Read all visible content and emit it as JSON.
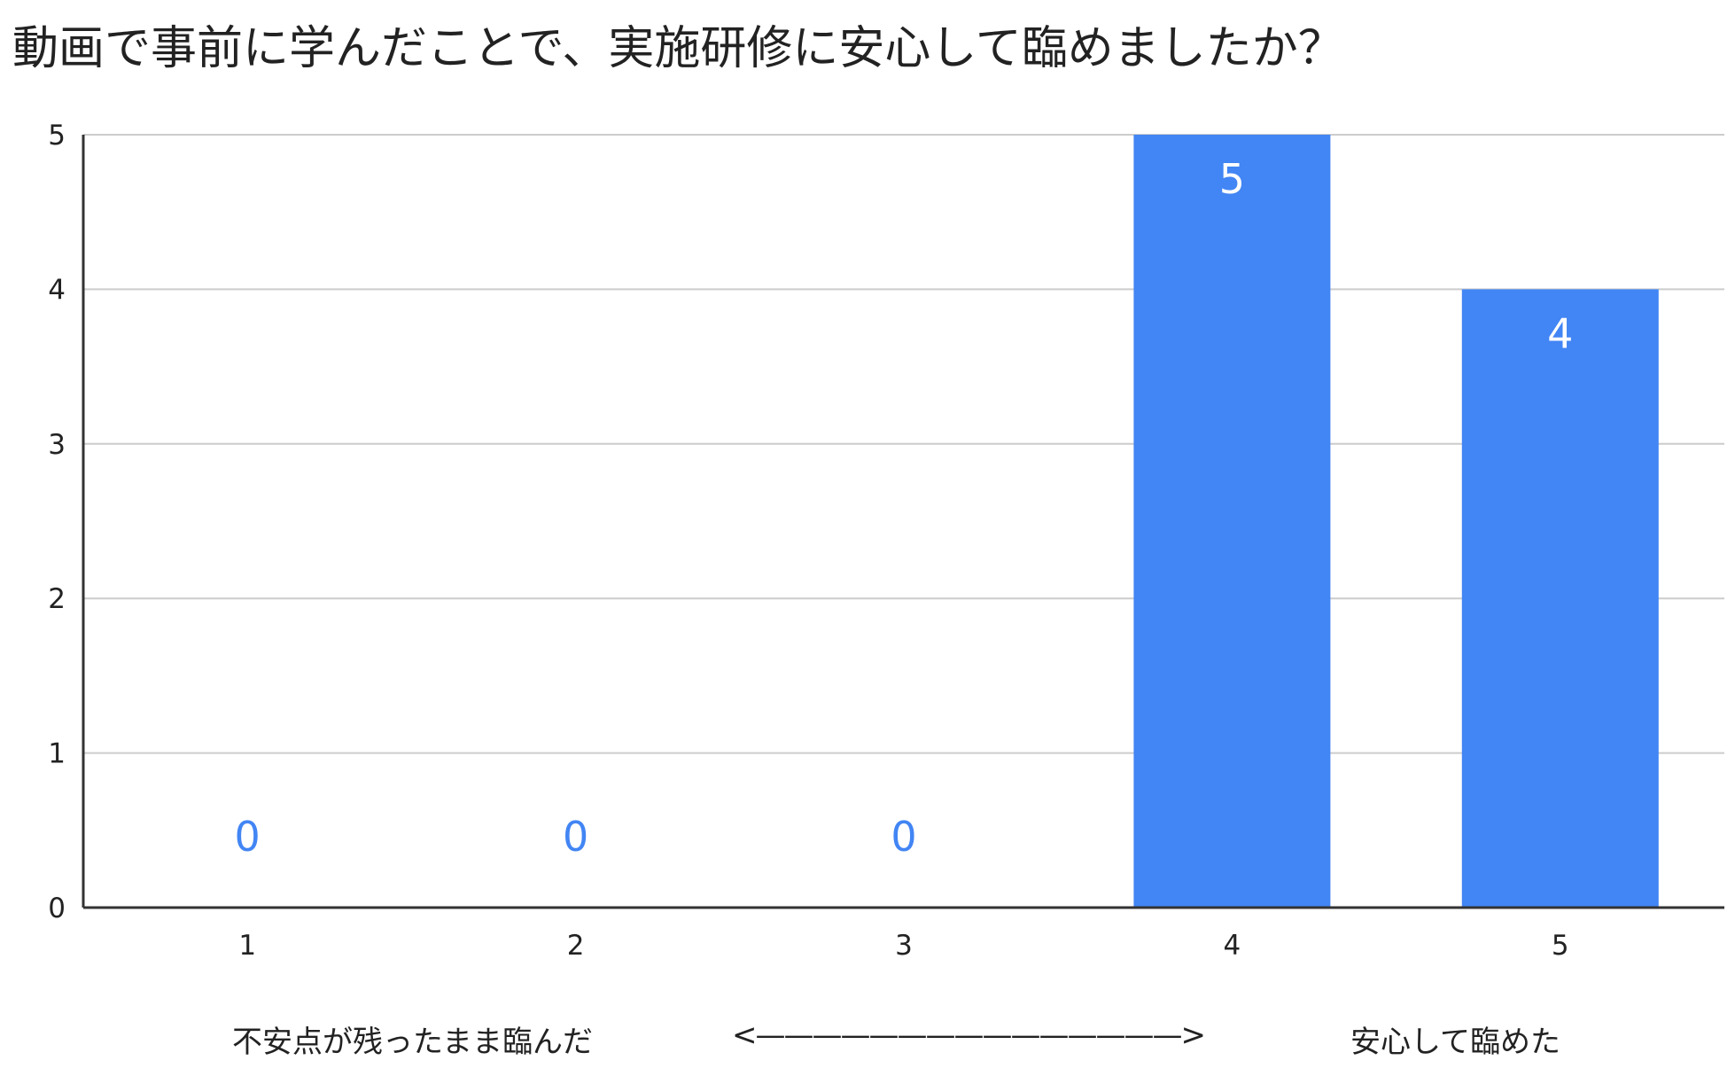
{
  "chart_data": {
    "type": "bar",
    "title": "動画で事前に学んだことで、実施研修に安心して臨めましたか？",
    "categories": [
      "1",
      "2",
      "3",
      "4",
      "5"
    ],
    "values": [
      0,
      0,
      0,
      5,
      4
    ],
    "ylim": [
      0,
      5
    ],
    "yticks": [
      "0",
      "1",
      "2",
      "3",
      "4",
      "5"
    ],
    "xlabel_left": "不安点が残ったまま臨んだ",
    "xlabel_arrow": "<———————————————>",
    "xlabel_right": "安心して臨めた",
    "bar_color": "#4285f4",
    "grid": true,
    "legend": "none"
  }
}
